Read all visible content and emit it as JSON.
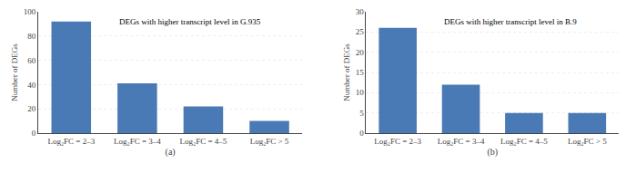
{
  "chart_data": [
    {
      "type": "bar",
      "categories": [
        "Log₂FC = 2–3",
        "Log₂FC = 3–4",
        "Log₂FC = 4–5",
        "Log₂FC > 5"
      ],
      "values": [
        92,
        41,
        22,
        10
      ],
      "color": "#4a7ab5",
      "ylim": [
        0,
        100
      ],
      "yticks": [
        0,
        20,
        40,
        60,
        80,
        100
      ],
      "grid": true,
      "ylabel": "Number of DEGs",
      "xlabel": "(a)",
      "annotation": "DEGs with higher transcript level in G.935"
    },
    {
      "type": "bar",
      "categories": [
        "Log₂FC = 2–3",
        "Log₂FC = 3–4",
        "Log₂FC = 4–5",
        "Log₂FC > 5"
      ],
      "values": [
        26,
        12,
        5,
        5
      ],
      "color": "#4a7ab5",
      "ylim": [
        0,
        30
      ],
      "yticks": [
        0,
        5,
        10,
        15,
        20,
        25,
        30
      ],
      "grid": true,
      "ylabel": "Number of DEGs",
      "xlabel": "(b)",
      "annotation": "DEGs with higher transcript level in B.9"
    }
  ]
}
